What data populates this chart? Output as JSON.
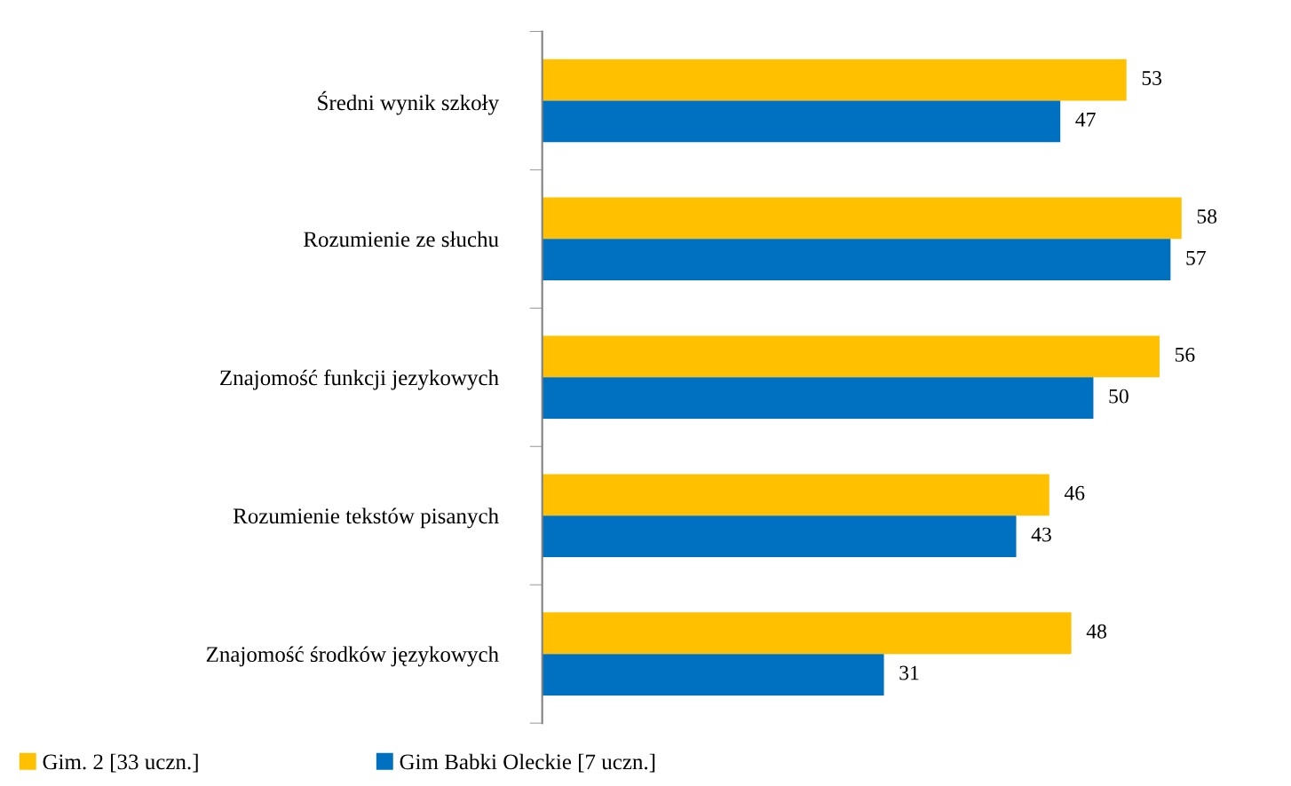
{
  "chart_data": {
    "type": "bar",
    "orientation": "horizontal",
    "categories": [
      "Średni wynik szkoły",
      "Rozumienie ze słuchu",
      "Znajomość funkcji jezykowych",
      "Rozumienie tekstów pisanych",
      "Znajomość środków językowych"
    ],
    "series": [
      {
        "name": "Gim. 2 [33 uczn.]",
        "color": "#ffc000",
        "values": [
          53,
          58,
          56,
          46,
          48
        ]
      },
      {
        "name": "Gim Babki Oleckie [7 uczn.]",
        "color": "#0070c0",
        "values": [
          47,
          57,
          50,
          43,
          31
        ]
      }
    ],
    "data_labels": true,
    "legend": "bottom left",
    "grid": false
  }
}
